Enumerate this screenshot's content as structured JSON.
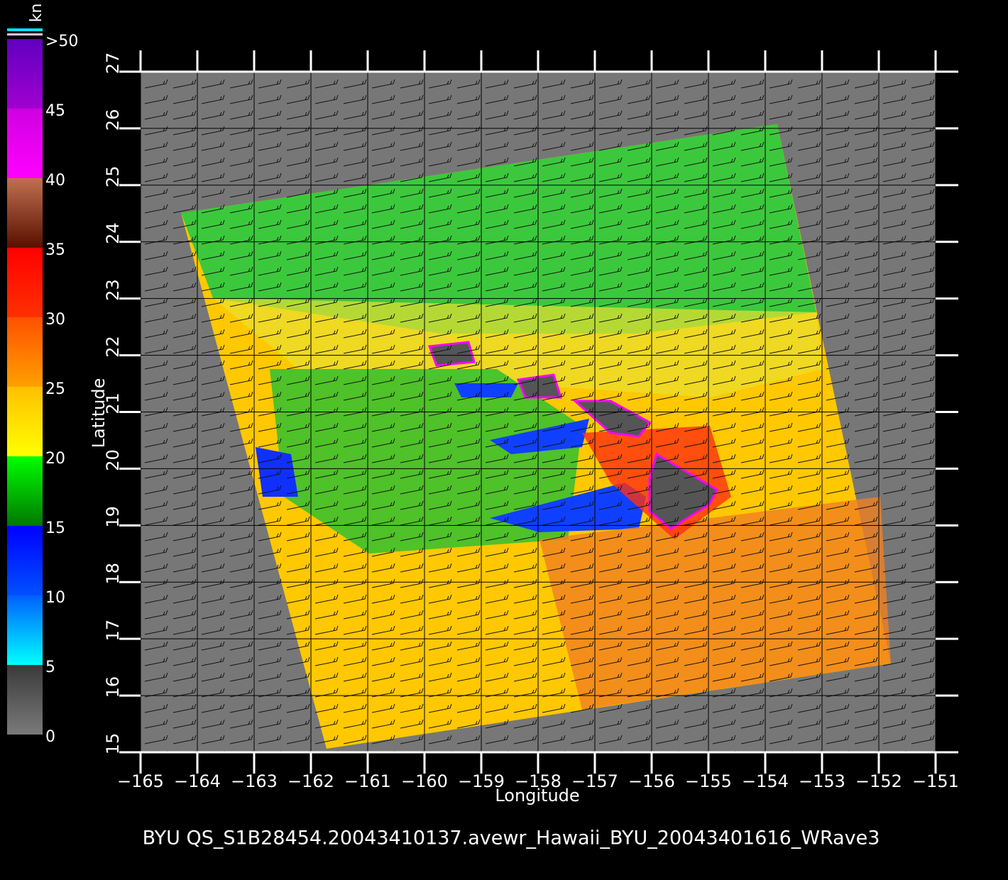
{
  "map": {
    "title": "BYU  QS_S1B28454.20043410137.avewr_Hawaii_BYU_20043401616_WRave3",
    "xlabel": "Longitude",
    "ylabel": "Latitude",
    "xlim": [
      -165,
      -151
    ],
    "ylim": [
      15,
      27
    ],
    "xticks": [
      {
        "value": -165,
        "label": "−165"
      },
      {
        "value": -164,
        "label": "−164"
      },
      {
        "value": -163,
        "label": "−163"
      },
      {
        "value": -162,
        "label": "−162"
      },
      {
        "value": -161,
        "label": "−161"
      },
      {
        "value": -160,
        "label": "−160"
      },
      {
        "value": -159,
        "label": "−159"
      },
      {
        "value": -158,
        "label": "−158"
      },
      {
        "value": -157,
        "label": "−157"
      },
      {
        "value": -156,
        "label": "−156"
      },
      {
        "value": -155,
        "label": "−155"
      },
      {
        "value": -154,
        "label": "−154"
      },
      {
        "value": -153,
        "label": "−153"
      },
      {
        "value": -152,
        "label": "−152"
      },
      {
        "value": -151,
        "label": "−151"
      }
    ],
    "yticks": [
      15,
      16,
      17,
      18,
      19,
      20,
      21,
      22,
      23,
      24,
      25,
      26,
      27
    ],
    "grid": true,
    "colorbar": {
      "unit": "kn",
      "lim": [
        0,
        50
      ],
      "ticks": [
        0,
        5,
        10,
        15,
        20,
        25,
        30,
        35,
        40,
        45,
        {
          "value": 50,
          "label": ">50"
        }
      ],
      "colors": [
        [
          "#7a7a7a",
          "#3a3a3a"
        ],
        [
          "#00ffff",
          "#0060ff"
        ],
        [
          "#0050ff",
          "#0000ff"
        ],
        [
          "#007800",
          "#00ff00"
        ],
        [
          "#ffff00",
          "#ffc000"
        ],
        [
          "#ffa000",
          "#ff5000"
        ],
        [
          "#ff3000",
          "#ff0000"
        ],
        [
          "#5a1000",
          "#c07050"
        ],
        [
          "#ff00ff",
          "#d000e0"
        ],
        [
          "#a000d0",
          "#6000c0"
        ]
      ]
    }
  }
}
